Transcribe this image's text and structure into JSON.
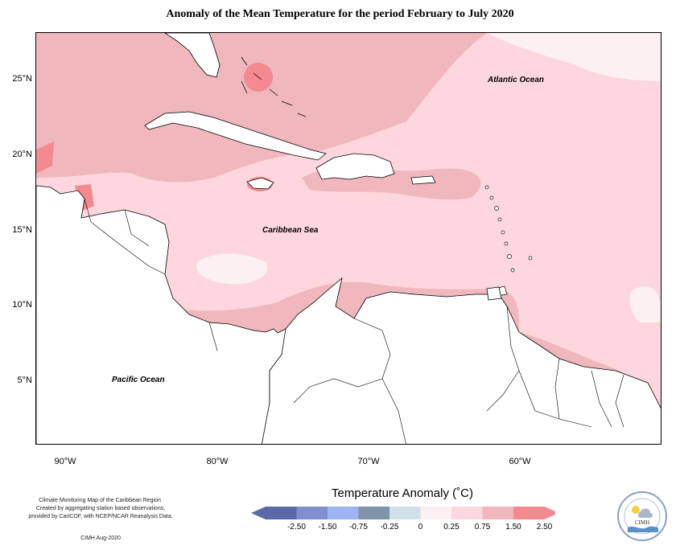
{
  "title": "Anomaly of the Mean Temperature for the period February to July 2020",
  "map": {
    "lat_ticks": [
      {
        "value": 25,
        "label": "25°N"
      },
      {
        "value": 20,
        "label": "20°N"
      },
      {
        "value": 15,
        "label": "15°N"
      },
      {
        "value": 10,
        "label": "10°N"
      },
      {
        "value": 5,
        "label": "5°N"
      }
    ],
    "lon_ticks": [
      {
        "value": -90,
        "label": "90°W"
      },
      {
        "value": -80,
        "label": "80°W"
      },
      {
        "value": -70,
        "label": "70°W"
      },
      {
        "value": -60,
        "label": "60°W"
      }
    ],
    "extent": {
      "lon_min": -92.2,
      "lon_max": -51.0,
      "lat_min": 0.7,
      "lat_max": 28.0
    },
    "labels": {
      "atlantic": "Atlantic Ocean",
      "caribbean": "Caribbean Sea",
      "pacific": "Pacific Ocean"
    },
    "colors": {
      "band_0_025": "#fdf0f2",
      "band_025_075": "#fdd7dd",
      "band_075_150": "#f0b7bd",
      "band_150_250": "#f48a91",
      "land": "#ffffff",
      "coast": "#000000"
    }
  },
  "legend": {
    "title": "Temperature Anomaly (˚C)",
    "ticks": [
      "-2.50",
      "-1.50",
      "-0.75",
      "-0.25",
      "0",
      "0.25",
      "0.75",
      "1.50",
      "2.50"
    ],
    "colors": [
      "#5b6aa6",
      "#7f8fd0",
      "#9db3f2",
      "#7f93a9",
      "#cfe0e8",
      "#fdf0f2",
      "#fdd7dd",
      "#f0b7bd",
      "#f48a91"
    ]
  },
  "footnote": {
    "lines": [
      "Climate Monitoring Map of the Caribbean Region.",
      "Created by aggregating station based observations,",
      "provided by CariCOF, with NCEP/NCAR Reanalysis Data."
    ],
    "credit": "CIMH Aug-2020"
  },
  "logo": {
    "text": "CIMH",
    "icon": "cimh-logo-icon"
  }
}
